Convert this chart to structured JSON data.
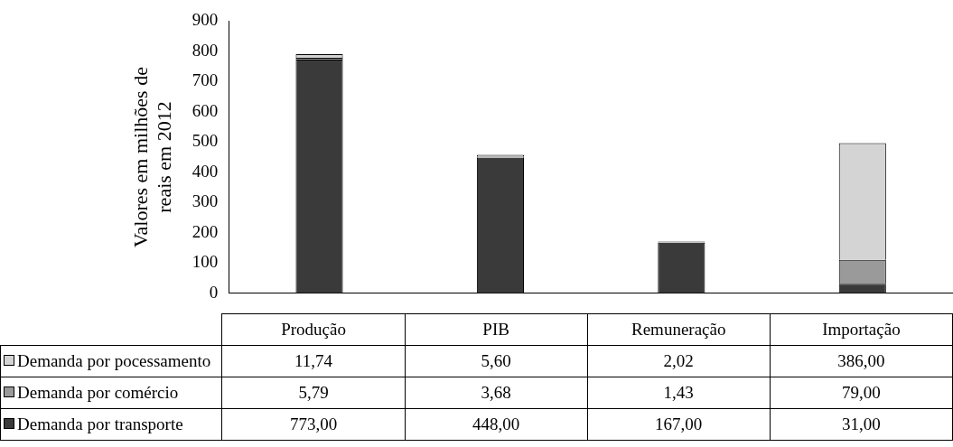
{
  "chart_data": {
    "type": "bar",
    "stacked": true,
    "ylabel": "Valores em milhões de reais em 2012",
    "categories": [
      "Produção",
      "PIB",
      "Remuneração",
      "Importação"
    ],
    "series": [
      {
        "name": "Demanda por transporte",
        "color": "#3a3a3a",
        "values": [
          773,
          448,
          167,
          31
        ],
        "value_labels": [
          "773,00",
          "448,00",
          "167,00",
          "31,00"
        ]
      },
      {
        "name": "Demanda por comércio",
        "color": "#9a9a9a",
        "values": [
          5.79,
          3.68,
          1.43,
          79
        ],
        "value_labels": [
          "5,79",
          "3,68",
          "1,43",
          "79,00"
        ]
      },
      {
        "name": "Demanda por pocessamento",
        "color": "#d4d4d4",
        "values": [
          11.74,
          5.6,
          2.02,
          386
        ],
        "value_labels": [
          "11,74",
          "5,60",
          "2,02",
          "386,00"
        ]
      }
    ],
    "ylim": [
      0,
      900
    ],
    "yticks": [
      0,
      100,
      200,
      300,
      400,
      500,
      600,
      700,
      800,
      900
    ],
    "grid": false,
    "legend": "bottom"
  }
}
